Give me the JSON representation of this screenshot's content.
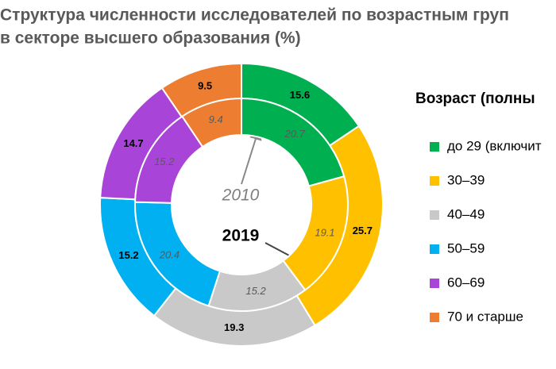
{
  "chart_data": {
    "type": "donut",
    "title": "Структура численности исследователей по возрастным груп",
    "subtitle": "в секторе высшего образования (%)",
    "legend_title": "Возраст (полны",
    "categories": [
      "до 29 (включит",
      "30–39",
      "40–49",
      "50–59",
      "60–69",
      "70 и старше"
    ],
    "colors": [
      "#00b050",
      "#ffc000",
      "#c9c9c9",
      "#00b0f0",
      "#a944d9",
      "#ed7d31"
    ],
    "series": [
      {
        "name": "2019",
        "values": [
          15.6,
          25.7,
          19.3,
          15.2,
          14.7,
          9.5
        ]
      },
      {
        "name": "2010",
        "values": [
          20.7,
          19.1,
          15.2,
          20.4,
          15.2,
          9.4
        ]
      }
    ]
  }
}
